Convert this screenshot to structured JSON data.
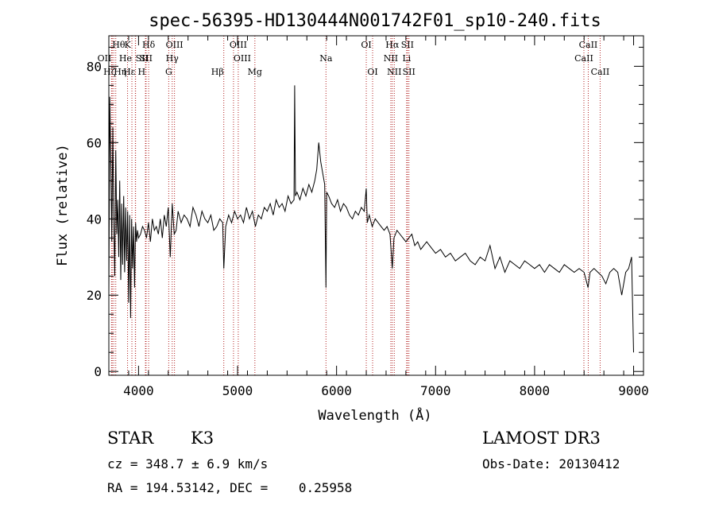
{
  "chart_data": {
    "type": "line",
    "title": "spec-56395-HD130444N001742F01_sp10-240.fits",
    "xlabel": "Wavelength (Å)",
    "ylabel": "Flux (relative)",
    "xlim": [
      3700,
      9100
    ],
    "ylim": [
      -1,
      88
    ],
    "x_ticks": [
      4000,
      5000,
      6000,
      7000,
      8000,
      9000
    ],
    "y_ticks": [
      0,
      20,
      40,
      60,
      80
    ],
    "x": [
      3700,
      3710,
      3720,
      3730,
      3740,
      3750,
      3760,
      3770,
      3780,
      3790,
      3800,
      3810,
      3820,
      3830,
      3840,
      3850,
      3860,
      3870,
      3880,
      3890,
      3900,
      3910,
      3920,
      3930,
      3940,
      3950,
      3960,
      3970,
      3980,
      3990,
      4000,
      4020,
      4040,
      4060,
      4080,
      4100,
      4120,
      4140,
      4160,
      4180,
      4200,
      4220,
      4240,
      4260,
      4280,
      4300,
      4320,
      4340,
      4360,
      4380,
      4400,
      4430,
      4460,
      4490,
      4520,
      4550,
      4580,
      4610,
      4640,
      4670,
      4700,
      4730,
      4760,
      4790,
      4820,
      4850,
      4861,
      4880,
      4910,
      4940,
      4970,
      5000,
      5030,
      5060,
      5090,
      5120,
      5150,
      5180,
      5210,
      5240,
      5270,
      5300,
      5330,
      5360,
      5390,
      5420,
      5450,
      5480,
      5510,
      5540,
      5570,
      5577,
      5585,
      5600,
      5630,
      5660,
      5690,
      5720,
      5750,
      5780,
      5800,
      5820,
      5840,
      5860,
      5880,
      5893,
      5900,
      5920,
      5950,
      5980,
      6010,
      6040,
      6070,
      6100,
      6130,
      6160,
      6190,
      6220,
      6250,
      6280,
      6300,
      6310,
      6330,
      6360,
      6390,
      6420,
      6450,
      6480,
      6510,
      6540,
      6563,
      6580,
      6610,
      6640,
      6670,
      6700,
      6730,
      6760,
      6790,
      6820,
      6850,
      6880,
      6910,
      6940,
      6970,
      7000,
      7050,
      7100,
      7150,
      7200,
      7250,
      7300,
      7350,
      7400,
      7450,
      7500,
      7550,
      7600,
      7650,
      7700,
      7750,
      7800,
      7850,
      7900,
      7950,
      8000,
      8050,
      8100,
      8150,
      8200,
      8250,
      8300,
      8350,
      8400,
      8450,
      8500,
      8540,
      8560,
      8600,
      8640,
      8680,
      8720,
      8760,
      8800,
      8840,
      8880,
      8920,
      8950,
      8980,
      9000
    ],
    "values": [
      20,
      72,
      55,
      34,
      64,
      40,
      25,
      58,
      36,
      45,
      30,
      50,
      24,
      44,
      28,
      46,
      26,
      43,
      29,
      42,
      18,
      41,
      14,
      40,
      27,
      38,
      22,
      39,
      34,
      37,
      35,
      36,
      38,
      37,
      35,
      39,
      34,
      40,
      37,
      38,
      36,
      40,
      35,
      41,
      38,
      43,
      30,
      44,
      36,
      37,
      42,
      39,
      41,
      40,
      38,
      43,
      41,
      38,
      42,
      40,
      39,
      41,
      37,
      38,
      40,
      39,
      27,
      38,
      41,
      39,
      42,
      40,
      41,
      39,
      43,
      40,
      42,
      38,
      41,
      40,
      43,
      42,
      44,
      41,
      45,
      43,
      44,
      42,
      46,
      44,
      45,
      75,
      46,
      47,
      45,
      48,
      46,
      49,
      47,
      50,
      53,
      60,
      55,
      52,
      49,
      22,
      47,
      46,
      44,
      43,
      45,
      42,
      44,
      43,
      41,
      40,
      42,
      41,
      43,
      42,
      48,
      39,
      41,
      38,
      40,
      39,
      38,
      37,
      38,
      36,
      27,
      35,
      37,
      36,
      35,
      34,
      35,
      36,
      33,
      34,
      32,
      33,
      34,
      33,
      32,
      31,
      32,
      30,
      31,
      29,
      30,
      31,
      29,
      28,
      30,
      29,
      33,
      27,
      30,
      26,
      29,
      28,
      27,
      29,
      28,
      27,
      28,
      26,
      28,
      27,
      26,
      28,
      27,
      26,
      27,
      26,
      22,
      26,
      27,
      26,
      25,
      23,
      26,
      27,
      26,
      20,
      26,
      27,
      30,
      5
    ],
    "lines": [
      {
        "label": "OII",
        "x": 3727,
        "row": 2,
        "anchor": "end"
      },
      {
        "label": "Hθ",
        "x": 3734,
        "row": 1,
        "anchor": "start"
      },
      {
        "label": "Hη",
        "x": 3750,
        "row": 3,
        "anchor": "start"
      },
      {
        "label": "Hζ",
        "x": 3770,
        "row": 3,
        "anchor": "end"
      },
      {
        "label": "K",
        "x": 3889,
        "row": 1,
        "anchor": "middle"
      },
      {
        "label": "He",
        "x": 3933,
        "row": 2,
        "anchor": "end"
      },
      {
        "label": "Hε",
        "x": 3968,
        "row": 3,
        "anchor": "end"
      },
      {
        "label": "SII",
        "x": 3970,
        "row": 2,
        "anchor": "start"
      },
      {
        "label": "H",
        "x": 4070,
        "row": 3,
        "anchor": "end"
      },
      {
        "label": "Hδ",
        "x": 4102,
        "row": 1,
        "anchor": "middle"
      },
      {
        "label": "SII",
        "x": 4076,
        "row": 2,
        "anchor": "middle"
      },
      {
        "label": "OIII",
        "x": 4363,
        "row": 1,
        "anchor": "middle"
      },
      {
        "label": "Hγ",
        "x": 4340,
        "row": 2,
        "anchor": "middle"
      },
      {
        "label": "G",
        "x": 4305,
        "row": 3,
        "anchor": "middle"
      },
      {
        "label": "Hβ",
        "x": 4861,
        "row": 3,
        "anchor": "end"
      },
      {
        "label": "OIII",
        "x": 4959,
        "row": 2,
        "anchor": "start"
      },
      {
        "label": "OIII",
        "x": 5007,
        "row": 1,
        "anchor": "middle"
      },
      {
        "label": "Mg",
        "x": 5175,
        "row": 3,
        "anchor": "middle"
      },
      {
        "label": "Na",
        "x": 5893,
        "row": 2,
        "anchor": "middle"
      },
      {
        "label": "OI",
        "x": 6300,
        "row": 1,
        "anchor": "middle"
      },
      {
        "label": "OI",
        "x": 6364,
        "row": 3,
        "anchor": "middle"
      },
      {
        "label": "NII",
        "x": 6548,
        "row": 2,
        "anchor": "middle"
      },
      {
        "label": "Hα",
        "x": 6563,
        "row": 1,
        "anchor": "middle"
      },
      {
        "label": "NII",
        "x": 6583,
        "row": 3,
        "anchor": "middle"
      },
      {
        "label": "SII",
        "x": 6716,
        "row": 1,
        "anchor": "middle"
      },
      {
        "label": "Li",
        "x": 6708,
        "row": 2,
        "anchor": "middle"
      },
      {
        "label": "SII",
        "x": 6731,
        "row": 3,
        "anchor": "middle"
      },
      {
        "label": "CaII",
        "x": 8498,
        "row": 2,
        "anchor": "middle"
      },
      {
        "label": "CaII",
        "x": 8542,
        "row": 1,
        "anchor": "middle"
      },
      {
        "label": "CaII",
        "x": 8662,
        "row": 3,
        "anchor": "middle"
      }
    ]
  },
  "info": {
    "object_class": "STAR",
    "subclass": "K3",
    "redshift": "cz = 348.7 ± 6.9 km/s",
    "coords": "RA = 194.53142, DEC =    0.25958",
    "survey": "LAMOST DR3",
    "obs_date": "Obs-Date: 20130412"
  },
  "colors": {
    "line_marker": "#b22222",
    "spectrum": "#000000"
  }
}
